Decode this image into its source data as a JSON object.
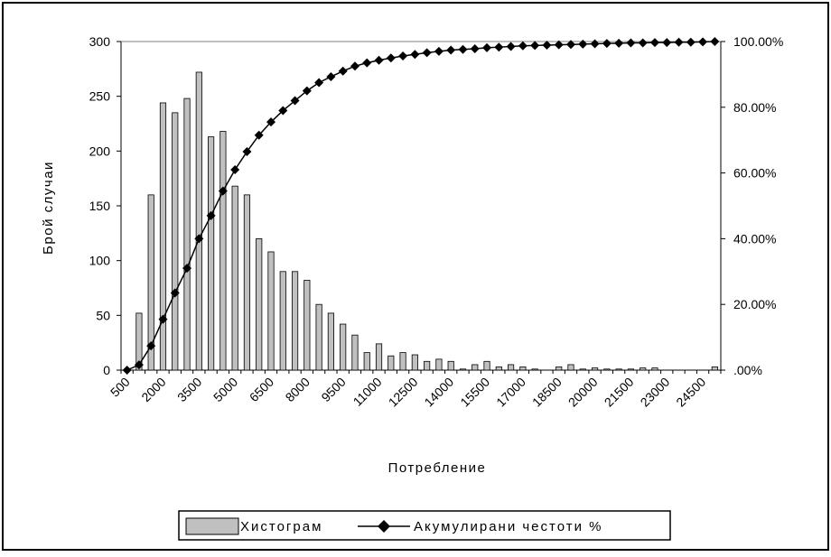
{
  "chart_data": {
    "type": "bar",
    "xlabel": "Потребление",
    "ylabel": "Брой случаи",
    "ylim": [
      0,
      300
    ],
    "y_ticks": [
      "0",
      "50",
      "100",
      "150",
      "200",
      "250",
      "300"
    ],
    "y2lim": [
      0,
      1
    ],
    "y2_ticks": [
      ".00%",
      "20.00%",
      "40.00%",
      "60.00%",
      "80.00%",
      "100.00%"
    ],
    "grid": "top-line-only",
    "legend_position": "bottom-center",
    "x_tick_labels": [
      "500",
      "2000",
      "3500",
      "5000",
      "6500",
      "8000",
      "9500",
      "11000",
      "12500",
      "14000",
      "15500",
      "17000",
      "18500",
      "20000",
      "21500",
      "23000",
      "24500"
    ],
    "categories": [
      "500",
      "1000",
      "1500",
      "2000",
      "2500",
      "3000",
      "3500",
      "4000",
      "4500",
      "5000",
      "5500",
      "6000",
      "6500",
      "7000",
      "7500",
      "8000",
      "8500",
      "9000",
      "9500",
      "10000",
      "10500",
      "11000",
      "11500",
      "12000",
      "12500",
      "13000",
      "13500",
      "14000",
      "14500",
      "15000",
      "15500",
      "16000",
      "16500",
      "17000",
      "17500",
      "18000",
      "18500",
      "19000",
      "19500",
      "20000",
      "20500",
      "21000",
      "21500",
      "22000",
      "22500",
      "23000",
      "23500",
      "24000",
      "24500",
      "25000"
    ],
    "series": [
      {
        "name": "Хистограм",
        "kind": "bar",
        "axis": "left",
        "color": "#c0c0c0",
        "values": [
          0,
          52,
          160,
          244,
          235,
          248,
          272,
          213,
          218,
          168,
          160,
          120,
          108,
          90,
          90,
          82,
          60,
          52,
          42,
          32,
          16,
          24,
          13,
          16,
          14,
          8,
          10,
          8,
          1,
          5,
          8,
          3,
          5,
          3,
          1,
          0,
          3,
          5,
          1,
          2,
          1,
          1,
          1,
          2,
          2,
          0,
          0,
          0,
          0,
          3
        ]
      },
      {
        "name": "Акумулирани честоти %",
        "kind": "line",
        "axis": "right",
        "color": "#000000",
        "marker": "diamond",
        "values": [
          0.0,
          0.016,
          0.074,
          0.155,
          0.235,
          0.31,
          0.4,
          0.47,
          0.545,
          0.61,
          0.665,
          0.715,
          0.755,
          0.79,
          0.82,
          0.85,
          0.875,
          0.893,
          0.91,
          0.925,
          0.935,
          0.943,
          0.95,
          0.956,
          0.961,
          0.966,
          0.97,
          0.974,
          0.976,
          0.978,
          0.981,
          0.983,
          0.985,
          0.987,
          0.988,
          0.989,
          0.99,
          0.991,
          0.992,
          0.993,
          0.994,
          0.995,
          0.996,
          0.996,
          0.997,
          0.997,
          0.998,
          0.998,
          0.999,
          1.0
        ]
      }
    ]
  }
}
